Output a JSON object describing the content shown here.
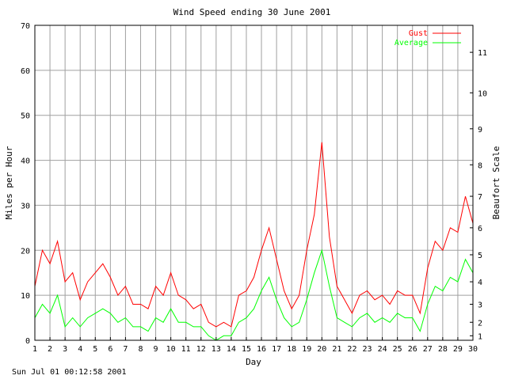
{
  "chart_data": {
    "type": "line",
    "title": "Wind Speed ending 30 June 2001",
    "xlabel": "Day",
    "ylabel": "Miles per Hour",
    "ylabel_right": "Beaufort Scale",
    "x_ticks": [
      "1",
      "2",
      "3",
      "4",
      "5",
      "6",
      "7",
      "8",
      "9",
      "10",
      "11",
      "12",
      "13",
      "14",
      "15",
      "16",
      "17",
      "18",
      "19",
      "20",
      "21",
      "22",
      "23",
      "24",
      "25",
      "26",
      "27",
      "28",
      "29",
      "30"
    ],
    "y_ticks": [
      "0",
      "10",
      "20",
      "30",
      "40",
      "50",
      "60",
      "70"
    ],
    "xlim": [
      1,
      30
    ],
    "ylim": [
      0,
      70
    ],
    "grid": true,
    "legend_position": "top-right",
    "beaufort_ticks": [
      {
        "label": "1",
        "mph": 1
      },
      {
        "label": "2",
        "mph": 4
      },
      {
        "label": "3",
        "mph": 8
      },
      {
        "label": "4",
        "mph": 13
      },
      {
        "label": "5",
        "mph": 19
      },
      {
        "label": "6",
        "mph": 25
      },
      {
        "label": "7",
        "mph": 32
      },
      {
        "label": "8",
        "mph": 39
      },
      {
        "label": "9",
        "mph": 47
      },
      {
        "label": "10",
        "mph": 55
      },
      {
        "label": "11",
        "mph": 64
      }
    ],
    "series": [
      {
        "name": "Gust",
        "color": "#ff0000",
        "x": [
          1,
          1.5,
          2,
          2.5,
          3,
          3.5,
          4,
          4.5,
          5,
          5.5,
          6,
          6.5,
          7,
          7.5,
          8,
          8.5,
          9,
          9.5,
          10,
          10.5,
          11,
          11.5,
          12,
          12.5,
          13,
          13.5,
          14,
          14.5,
          15,
          15.5,
          16,
          16.5,
          17,
          17.5,
          18,
          18.5,
          19,
          19.5,
          20,
          20.5,
          21,
          21.5,
          22,
          22.5,
          23,
          23.5,
          24,
          24.5,
          25,
          25.5,
          26,
          26.5,
          27,
          27.5,
          28,
          28.5,
          29,
          29.5,
          30
        ],
        "values": [
          12,
          20,
          17,
          22,
          13,
          15,
          9,
          13,
          15,
          17,
          14,
          10,
          12,
          8,
          8,
          7,
          12,
          10,
          15,
          10,
          9,
          7,
          8,
          4,
          3,
          4,
          3,
          10,
          11,
          14,
          20,
          25,
          18,
          11,
          7,
          10,
          20,
          28,
          44,
          23,
          12,
          9,
          6,
          10,
          11,
          9,
          10,
          8,
          11,
          10,
          10,
          6,
          16,
          22,
          20,
          25,
          24,
          32,
          26
        ]
      },
      {
        "name": "Average",
        "color": "#00ff00",
        "x": [
          1,
          1.5,
          2,
          2.5,
          3,
          3.5,
          4,
          4.5,
          5,
          5.5,
          6,
          6.5,
          7,
          7.5,
          8,
          8.5,
          9,
          9.5,
          10,
          10.5,
          11,
          11.5,
          12,
          12.5,
          13,
          13.5,
          14,
          14.5,
          15,
          15.5,
          16,
          16.5,
          17,
          17.5,
          18,
          18.5,
          19,
          19.5,
          20,
          20.5,
          21,
          21.5,
          22,
          22.5,
          23,
          23.5,
          24,
          24.5,
          25,
          25.5,
          26,
          26.5,
          27,
          27.5,
          28,
          28.5,
          29,
          29.5,
          30
        ],
        "values": [
          5,
          8,
          6,
          10,
          3,
          5,
          3,
          5,
          6,
          7,
          6,
          4,
          5,
          3,
          3,
          2,
          5,
          4,
          7,
          4,
          4,
          3,
          3,
          1,
          0,
          1,
          1,
          4,
          5,
          7,
          11,
          14,
          9,
          5,
          3,
          4,
          9,
          15,
          20,
          12,
          5,
          4,
          3,
          5,
          6,
          4,
          5,
          4,
          6,
          5,
          5,
          2,
          8,
          12,
          11,
          14,
          13,
          18,
          15
        ]
      }
    ]
  },
  "footer": {
    "timestamp": "Sun Jul 01 00:12:58 2001"
  }
}
